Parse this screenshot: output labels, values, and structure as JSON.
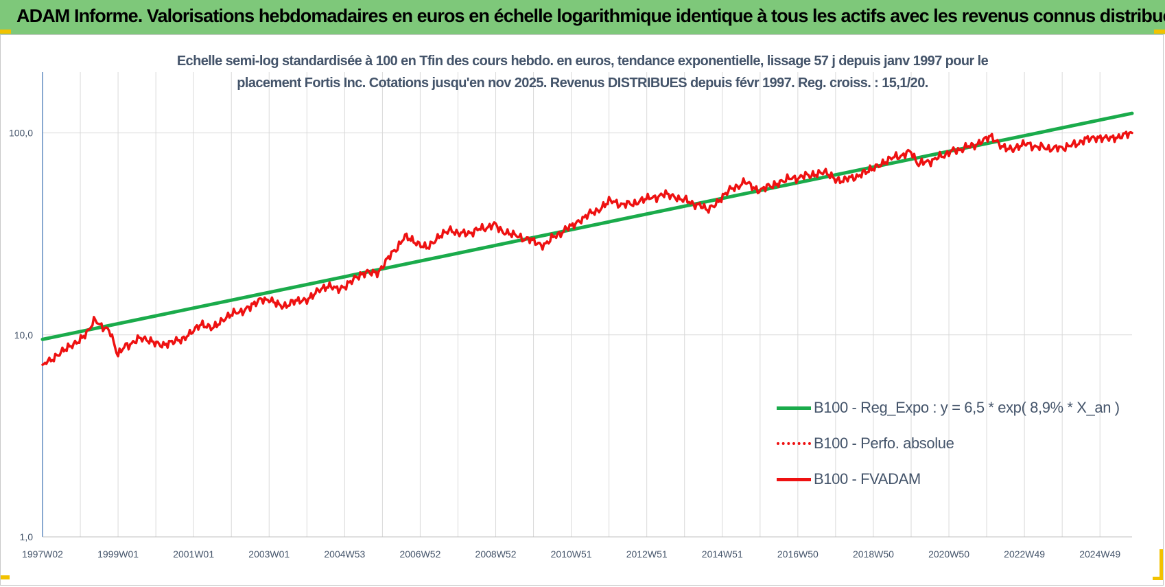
{
  "banner": {
    "title": "ADAM Informe. Valorisations hebdomadaires en euros en échelle logarithmique identique à tous les actifs avec les revenus connus distribués"
  },
  "colors": {
    "banner_bg": "#7ec87a",
    "corner_marks": "#f2c200",
    "trend_line": "#1aab4b",
    "series_red": "#ee1111",
    "text": "#44546a",
    "grid": "#d9d9d9"
  },
  "chart_data": {
    "type": "line",
    "title_line1": "Echelle semi-log standardisée à 100 en Tfin des cours hebdo. en euros, tendance exponentielle, lissage 57 j depuis janv 1997 pour le",
    "title_line2": "placement Fortis Inc. Cotations jusqu'en nov 2025. Revenus DISTRIBUES depuis févr 1997. Reg. croiss. : 15,1/20.",
    "y_scale": "log",
    "ylim": [
      1,
      200
    ],
    "y_ticks": [
      {
        "value": 1,
        "label": "1,0"
      },
      {
        "value": 10,
        "label": "10,0"
      },
      {
        "value": 100,
        "label": "100,0"
      }
    ],
    "x_range_years": [
      1997.0,
      2025.85
    ],
    "x_ticks": [
      {
        "year": 1997.0,
        "label": "1997W02"
      },
      {
        "year": 1999.0,
        "label": "1999W01"
      },
      {
        "year": 2001.0,
        "label": "2001W01"
      },
      {
        "year": 2003.0,
        "label": "2003W01"
      },
      {
        "year": 2005.0,
        "label": "2004W53"
      },
      {
        "year": 2007.0,
        "label": "2006W52"
      },
      {
        "year": 2009.0,
        "label": "2008W52"
      },
      {
        "year": 2011.0,
        "label": "2010W51"
      },
      {
        "year": 2013.0,
        "label": "2012W51"
      },
      {
        "year": 2015.0,
        "label": "2014W51"
      },
      {
        "year": 2017.0,
        "label": "2016W50"
      },
      {
        "year": 2019.0,
        "label": "2018W50"
      },
      {
        "year": 2021.0,
        "label": "2020W50"
      },
      {
        "year": 2023.0,
        "label": "2022W49"
      },
      {
        "year": 2025.0,
        "label": "2024W49"
      }
    ],
    "grid": true,
    "legend_position": "lower-right",
    "series": [
      {
        "name": "B100 - Reg_Expo : y = 6,5 * exp( 8,9% *  X_an )",
        "style": "solid-green",
        "x": [
          1997.0,
          2025.85
        ],
        "y": [
          9.5,
          125
        ]
      },
      {
        "name": "B100 - Perfo. absolue",
        "style": "dotted-red",
        "x": [],
        "y": []
      },
      {
        "name": "B100 - FVADAM",
        "style": "solid-red",
        "x": [
          1997.0,
          1997.1,
          1997.3,
          1997.6,
          1997.9,
          1998.2,
          1998.4,
          1998.6,
          1998.8,
          1999.0,
          1999.2,
          1999.4,
          1999.6,
          1999.9,
          2000.2,
          2000.5,
          2000.9,
          2001.2,
          2001.5,
          2001.8,
          2002.1,
          2002.5,
          2002.8,
          2003.0,
          2003.3,
          2003.7,
          2004.0,
          2004.3,
          2004.6,
          2005.0,
          2005.3,
          2005.6,
          2005.9,
          2006.2,
          2006.6,
          2006.9,
          2007.2,
          2007.5,
          2007.8,
          2008.2,
          2008.6,
          2009.0,
          2009.2,
          2009.5,
          2009.9,
          2010.2,
          2010.6,
          2011.0,
          2011.3,
          2011.7,
          2012.0,
          2012.4,
          2012.8,
          2013.1,
          2013.5,
          2013.8,
          2014.2,
          2014.6,
          2014.9,
          2015.2,
          2015.6,
          2015.9,
          2016.3,
          2016.6,
          2017.0,
          2017.4,
          2017.7,
          2018.0,
          2018.4,
          2018.8,
          2019.1,
          2019.4,
          2019.8,
          2020.0,
          2020.2,
          2020.6,
          2021.0,
          2021.4,
          2021.8,
          2022.1,
          2022.4,
          2022.7,
          2023.0,
          2023.4,
          2023.8,
          2024.2,
          2024.6,
          2024.9,
          2025.2,
          2025.5,
          2025.85
        ],
        "y": [
          7.0,
          7.5,
          7.6,
          8.4,
          9.2,
          10.5,
          11.8,
          11.0,
          10.2,
          8.0,
          8.8,
          9.2,
          9.6,
          9.4,
          8.9,
          9.2,
          10.0,
          11.3,
          11.0,
          11.9,
          12.8,
          13.6,
          15.2,
          14.8,
          13.8,
          14.6,
          15.0,
          16.8,
          17.2,
          17.0,
          19.2,
          20.8,
          20.3,
          24.5,
          30.5,
          28.5,
          27.5,
          30.5,
          32.8,
          31.5,
          33.5,
          35.0,
          32.5,
          31.0,
          29.5,
          27.5,
          31.0,
          34.5,
          38.0,
          41.5,
          46.0,
          44.0,
          45.5,
          47.5,
          49.5,
          48.0,
          45.0,
          42.0,
          46.0,
          52.0,
          57.0,
          52.0,
          54.5,
          58.5,
          60.0,
          62.5,
          64.0,
          58.0,
          59.5,
          63.5,
          69.0,
          74.0,
          78.0,
          80.5,
          70.0,
          73.5,
          80.0,
          84.0,
          89.0,
          95.0,
          86.0,
          84.0,
          88.0,
          85.0,
          83.5,
          86.0,
          92.0,
          93.5,
          96.0,
          95.0,
          100.0
        ]
      }
    ]
  }
}
